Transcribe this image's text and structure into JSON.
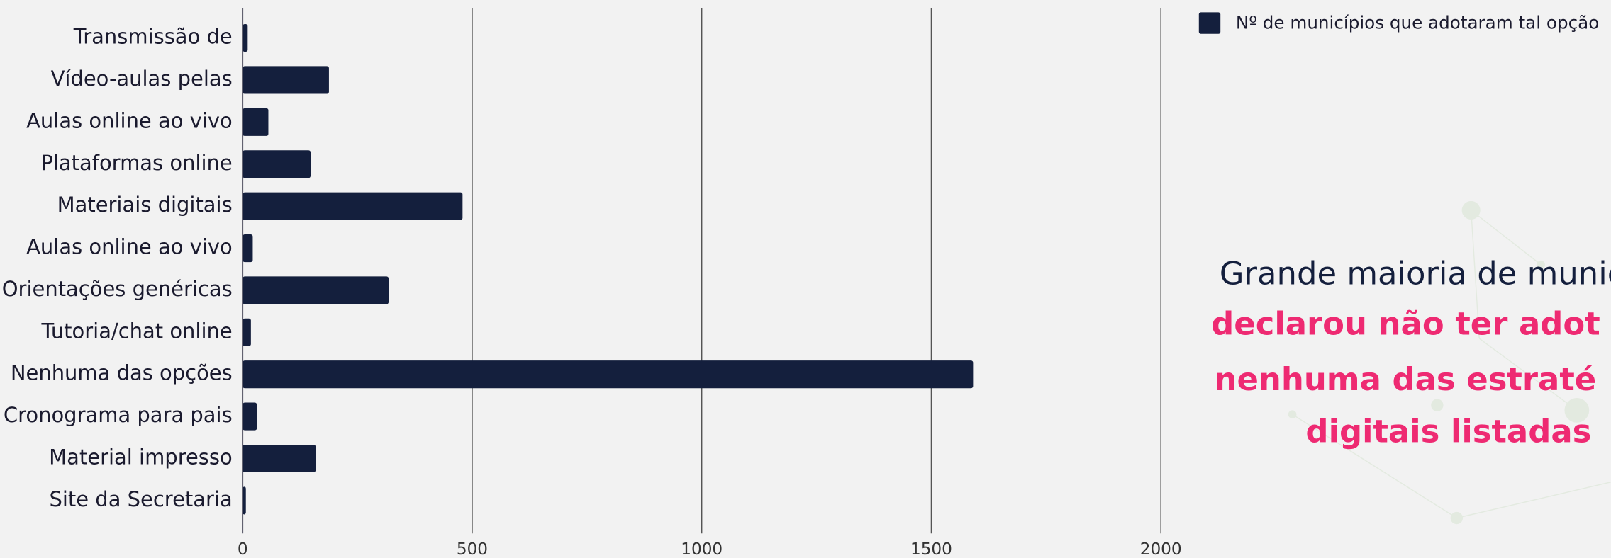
{
  "chart_data": {
    "type": "bar",
    "orientation": "horizontal",
    "categories": [
      "Transmissão de",
      "Vídeo-aulas pelas",
      "Aulas online ao vivo",
      "Plataformas online",
      "Materiais digitais",
      "Aulas online ao vivo",
      "Orientações genéricas",
      "Tutoria/chat online",
      "Nenhuma das opções",
      "Cronograma para pais",
      "Material impresso",
      "Site da Secretaria"
    ],
    "series": [
      {
        "name": "Nº de municípios que adotaram tal opção",
        "color": "#141f3d",
        "values": [
          11,
          188,
          56,
          148,
          479,
          22,
          318,
          18,
          1591,
          31,
          159,
          7
        ]
      }
    ],
    "xlim": [
      0,
      2000
    ],
    "xticks": [
      0,
      500,
      1000,
      1500,
      2000
    ],
    "grid": true,
    "legend": "top-right",
    "annotation": [
      {
        "text": "Grande maioria de munic",
        "color": "#141f3d",
        "bold": false
      },
      {
        "text": "declarou não ter adot",
        "color": "#ee2a72",
        "bold": true
      },
      {
        "text": "nenhuma das estraté",
        "color": "#ee2a72",
        "bold": true
      },
      {
        "text": "digitais listadas",
        "color": "#ee2a72",
        "bold": true
      }
    ]
  }
}
